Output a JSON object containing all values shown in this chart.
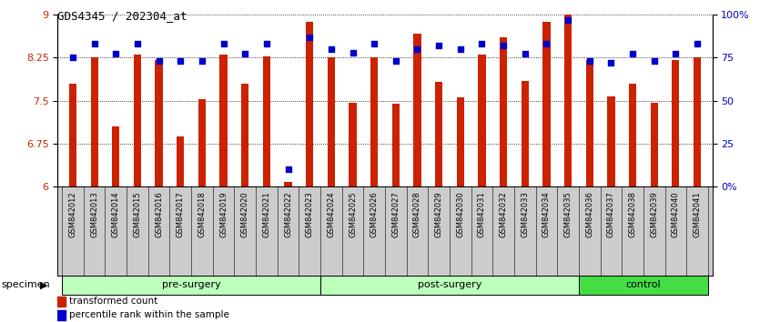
{
  "title": "GDS4345 / 202304_at",
  "samples": [
    "GSM842012",
    "GSM842013",
    "GSM842014",
    "GSM842015",
    "GSM842016",
    "GSM842017",
    "GSM842018",
    "GSM842019",
    "GSM842020",
    "GSM842021",
    "GSM842022",
    "GSM842023",
    "GSM842024",
    "GSM842025",
    "GSM842026",
    "GSM842027",
    "GSM842028",
    "GSM842029",
    "GSM842030",
    "GSM842031",
    "GSM842032",
    "GSM842033",
    "GSM842034",
    "GSM842035",
    "GSM842036",
    "GSM842037",
    "GSM842038",
    "GSM842039",
    "GSM842040",
    "GSM842041"
  ],
  "red_values": [
    7.8,
    8.25,
    7.05,
    8.3,
    8.2,
    6.87,
    7.53,
    8.3,
    7.8,
    8.27,
    6.08,
    8.87,
    8.25,
    7.47,
    8.25,
    7.45,
    8.67,
    7.82,
    7.55,
    8.3,
    8.6,
    7.85,
    8.87,
    9.0,
    8.2,
    7.58,
    7.8,
    7.47,
    8.2,
    8.25
  ],
  "blue_values": [
    75,
    83,
    77,
    83,
    73,
    73,
    73,
    83,
    77,
    83,
    10,
    87,
    80,
    78,
    83,
    73,
    80,
    82,
    80,
    83,
    82,
    77,
    83,
    97,
    73,
    72,
    77,
    73,
    77,
    83
  ],
  "groups": [
    {
      "label": "pre-surgery",
      "start": 0,
      "end": 11,
      "color": "#ccffcc"
    },
    {
      "label": "post-surgery",
      "start": 12,
      "end": 23,
      "color": "#ccffcc"
    },
    {
      "label": "control",
      "start": 24,
      "end": 29,
      "color": "#44ee44"
    }
  ],
  "ylim_left": [
    6.0,
    9.0
  ],
  "ylim_right": [
    0,
    100
  ],
  "yticks_left": [
    6.0,
    6.75,
    7.5,
    8.25,
    9.0
  ],
  "yticks_right": [
    0,
    25,
    50,
    75,
    100
  ],
  "ytick_labels_left": [
    "6",
    "6.75",
    "7.5",
    "8.25",
    "9"
  ],
  "ytick_labels_right": [
    "0%",
    "25",
    "50",
    "75",
    "100%"
  ],
  "bar_color": "#cc2200",
  "dot_color": "#0000cc",
  "grid_color": "#000000",
  "bg_color": "#ffffff",
  "tick_label_color_left": "#cc2200",
  "tick_label_color_right": "#0000cc",
  "legend_red": "transformed count",
  "legend_blue": "percentile rank within the sample",
  "specimen_label": "specimen",
  "xlabel_bg": "#cccccc",
  "group_border_color": "#000000",
  "pre_post_color": "#bbffbb",
  "control_color": "#44dd44"
}
